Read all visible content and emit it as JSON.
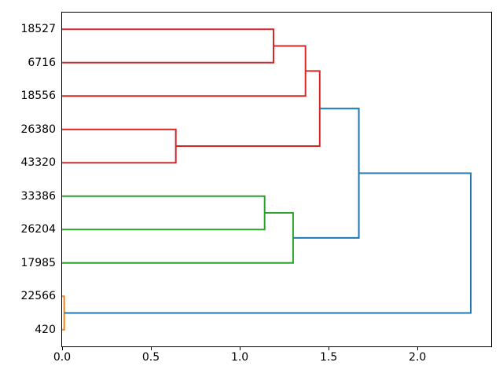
{
  "figure": {
    "background": "#ffffff",
    "border_color": "#000000"
  },
  "chart_data": {
    "type": "dendrogram",
    "orientation": "right",
    "title": "",
    "xlabel": "",
    "ylabel": "",
    "grid": false,
    "legend": null,
    "leaf_labels": [
      "18527",
      "6716",
      "18556",
      "26380",
      "43320",
      "33386",
      "26204",
      "17985",
      "22566",
      "420"
    ],
    "links": [
      {
        "id": "L1",
        "children": [
          "18527",
          "6716"
        ],
        "distance": 1.19,
        "color": "red"
      },
      {
        "id": "L2",
        "children": [
          "L1",
          "18556"
        ],
        "distance": 1.37,
        "color": "red"
      },
      {
        "id": "L3",
        "children": [
          "26380",
          "43320"
        ],
        "distance": 0.64,
        "color": "red"
      },
      {
        "id": "L4",
        "children": [
          "L2",
          "L3"
        ],
        "distance": 1.45,
        "color": "red"
      },
      {
        "id": "L5",
        "children": [
          "33386",
          "26204"
        ],
        "distance": 1.14,
        "color": "green"
      },
      {
        "id": "L6",
        "children": [
          "L5",
          "17985"
        ],
        "distance": 1.3,
        "color": "green"
      },
      {
        "id": "L7",
        "children": [
          "22566",
          "420"
        ],
        "distance": 0.012,
        "color": "orange"
      },
      {
        "id": "L8",
        "children": [
          "L4",
          "L6"
        ],
        "distance": 1.67,
        "color": "blue"
      },
      {
        "id": "L9",
        "children": [
          "L8",
          "L7"
        ],
        "distance": 2.3,
        "color": "blue"
      }
    ],
    "palette": {
      "red": "#d62728",
      "green": "#2ca02c",
      "blue": "#1f77b4",
      "orange": "#ff7f0e"
    },
    "x_axis": {
      "tick_labels": [
        "0.0",
        "0.5",
        "1.0",
        "1.5",
        "2.0"
      ],
      "tick_values": [
        0,
        0.5,
        1.0,
        1.5,
        2.0
      ],
      "min": 0,
      "max": 2.415
    },
    "line_width": 2
  }
}
